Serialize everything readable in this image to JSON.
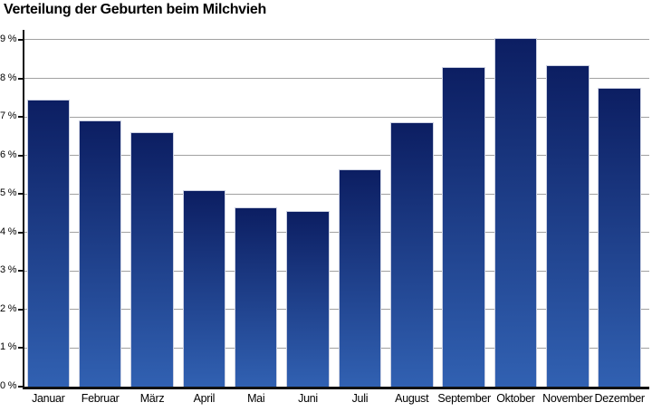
{
  "chart_data": {
    "type": "bar",
    "title": "Verteilung der Geburten beim Milchvieh",
    "categories": [
      "Januar",
      "Februar",
      "März",
      "April",
      "Mai",
      "Juni",
      "Juli",
      "August",
      "September",
      "Oktober",
      "November",
      "Dezember"
    ],
    "values": [
      7.45,
      6.9,
      6.6,
      5.1,
      4.65,
      4.55,
      5.65,
      6.85,
      8.3,
      9.05,
      8.35,
      7.75
    ],
    "unit": "%",
    "xlabel": "",
    "ylabel": "",
    "ylim": [
      0,
      9.3
    ],
    "y_ticks": [
      0,
      1,
      2,
      3,
      4,
      5,
      6,
      7,
      8,
      9
    ],
    "y_tick_suffix": " %",
    "grid": "horizontal-behind-bars",
    "legend": "none",
    "colors": {
      "bar_gradient_top": "#0c1e62",
      "bar_gradient_bottom": "#3161b2",
      "bar_border": "#ccd1e2",
      "gridline": "#a1a1a1",
      "axis": "#111111",
      "title": "#000000",
      "background": "#ffffff"
    }
  }
}
